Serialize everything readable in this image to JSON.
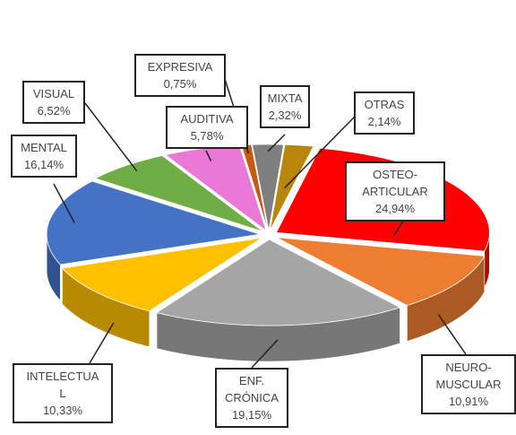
{
  "chart_data": {
    "type": "pie3d",
    "categories": [
      "OTRAS",
      "OSTEO-\nARTICULAR",
      "NEURO-\nMUSCULAR",
      "ENF.\nCRÓNICA",
      "INTELECTUA\nL",
      "MENTAL",
      "VISUAL",
      "AUDITIVA",
      "EXPRESIVA",
      "MIXTA"
    ],
    "values": [
      2.14,
      24.94,
      10.91,
      19.15,
      10.33,
      16.14,
      6.52,
      5.78,
      0.75,
      2.32
    ],
    "value_labels": [
      "2,14%",
      "24,94%",
      "10,91%",
      "19,15%",
      "10,33%",
      "16,14%",
      "6,52%",
      "5,78%",
      "0,75%",
      "2,32%"
    ],
    "colors": [
      "#b8860b",
      "#ff0000",
      "#ed7d31",
      "#a5a5a5",
      "#ffc000",
      "#4472c4",
      "#70ad47",
      "#e978d6",
      "#c55a11",
      "#7f7f7f"
    ]
  }
}
